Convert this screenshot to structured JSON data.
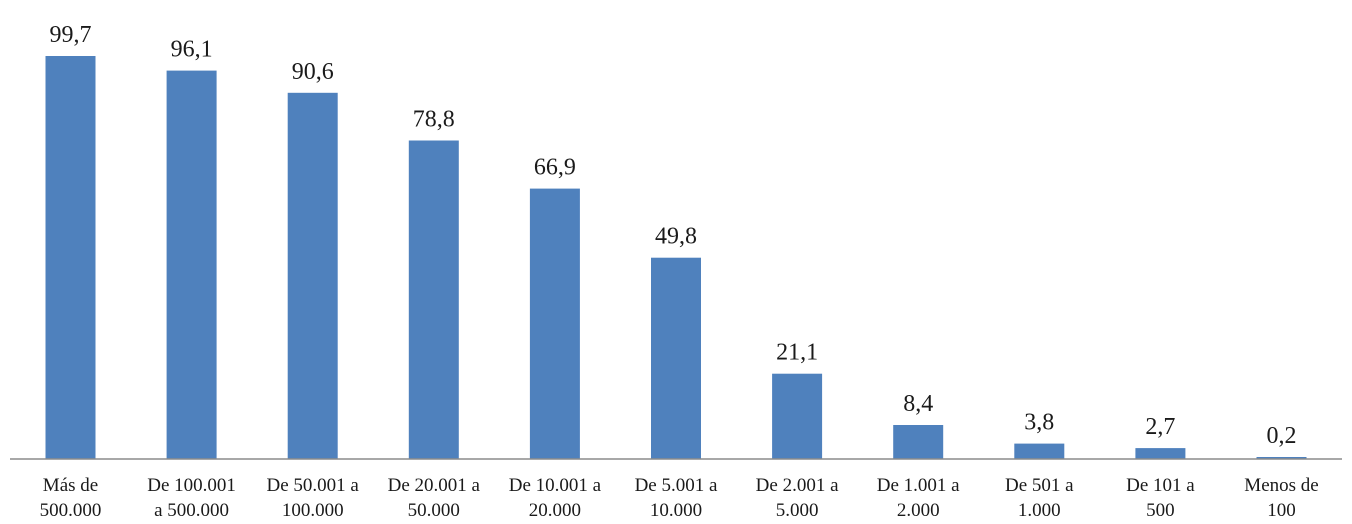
{
  "chart_data": {
    "type": "bar",
    "categories": [
      [
        "Más de",
        "500.000"
      ],
      [
        "De 100.001",
        "a 500.000"
      ],
      [
        "De 50.001 a",
        "100.000"
      ],
      [
        "De 20.001 a",
        "50.000"
      ],
      [
        "De 10.001 a",
        "20.000"
      ],
      [
        "De 5.001 a",
        "10.000"
      ],
      [
        "De 2.001 a",
        "5.000"
      ],
      [
        "De 1.001 a",
        "2.000"
      ],
      [
        "De 501 a",
        "1.000"
      ],
      [
        "De 101 a",
        "500"
      ],
      [
        "Menos de",
        "100"
      ]
    ],
    "values": [
      99.7,
      96.1,
      90.6,
      78.8,
      66.9,
      49.8,
      21.1,
      8.4,
      3.8,
      2.7,
      0.2
    ],
    "value_labels": [
      "99,7",
      "96,1",
      "90,6",
      "78,8",
      "66,9",
      "49,8",
      "21,1",
      "8,4",
      "3,8",
      "2,7",
      "0,2"
    ],
    "ylim": [
      0,
      100
    ],
    "grid": false,
    "legend": "none",
    "colors": {
      "bar": "#4f81bd",
      "axis": "#8c8c8c",
      "text": "#1a1a1a"
    }
  }
}
